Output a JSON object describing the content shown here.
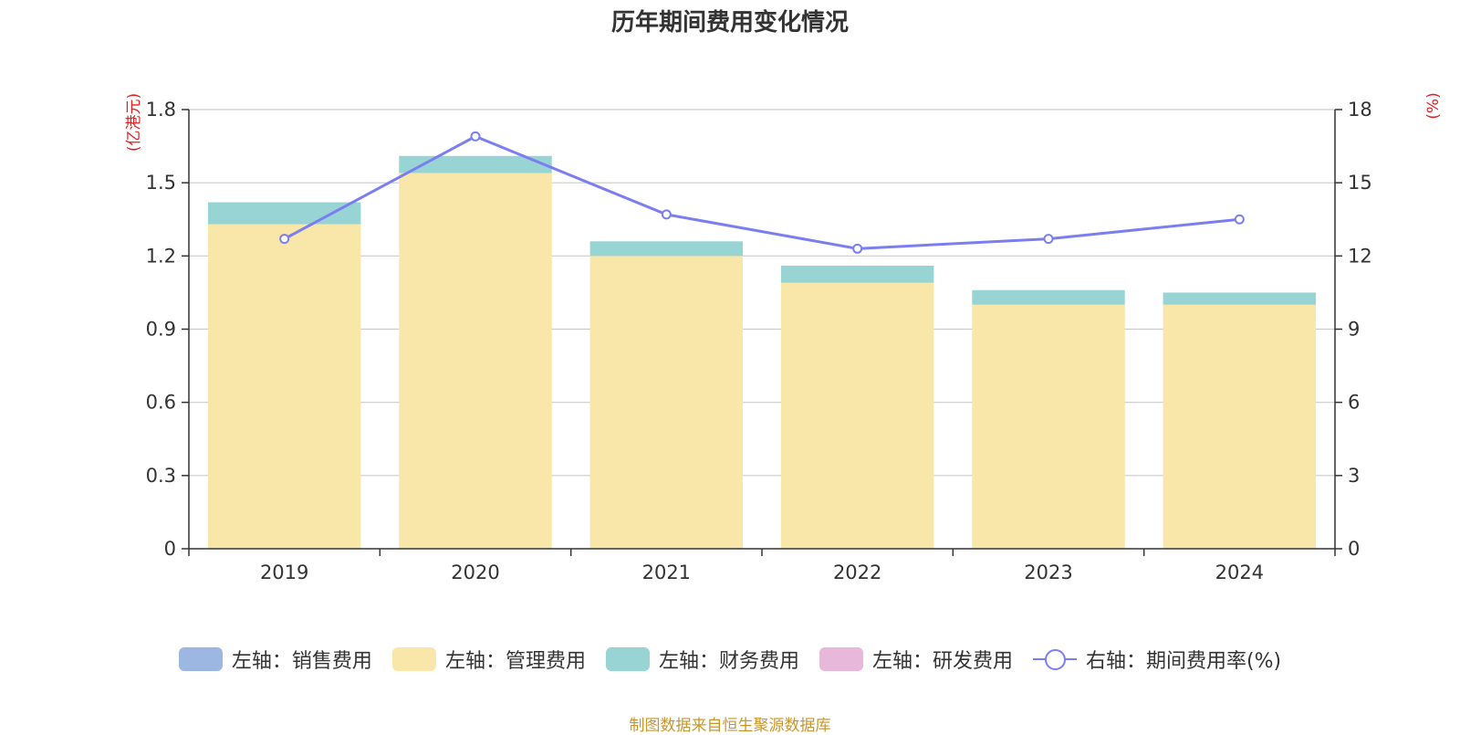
{
  "chart_data": {
    "type": "bar",
    "title": "历年期间费用变化情况",
    "categories": [
      "2019",
      "2020",
      "2021",
      "2022",
      "2023",
      "2024"
    ],
    "stacked": true,
    "left_axis": {
      "unit_label": "(亿港元)",
      "ylim": [
        0,
        1.8
      ],
      "ticks": [
        "0",
        "0.3",
        "0.6",
        "0.9",
        "1.2",
        "1.5",
        "1.8"
      ]
    },
    "right_axis": {
      "unit_label": "(%)",
      "ylim": [
        0,
        18
      ],
      "ticks": [
        "0",
        "3",
        "6",
        "9",
        "12",
        "15",
        "18"
      ]
    },
    "grid": true,
    "legend_position": "bottom",
    "series": [
      {
        "name": "左轴：销售费用",
        "axis": "left",
        "type": "bar",
        "color": "#9db7e3",
        "values": [
          0,
          0,
          0,
          0,
          0,
          0
        ]
      },
      {
        "name": "左轴：管理费用",
        "axis": "left",
        "type": "bar",
        "color": "#f8e7a8",
        "values": [
          1.33,
          1.54,
          1.2,
          1.09,
          1.0,
          1.0
        ]
      },
      {
        "name": "左轴：财务费用",
        "axis": "left",
        "type": "bar",
        "color": "#98d4d4",
        "values": [
          0.09,
          0.07,
          0.06,
          0.07,
          0.06,
          0.05
        ]
      },
      {
        "name": "左轴：研发费用",
        "axis": "left",
        "type": "bar",
        "color": "#e8b8da",
        "values": [
          0,
          0,
          0,
          0,
          0,
          0
        ]
      },
      {
        "name": "右轴：期间费用率(%)",
        "axis": "right",
        "type": "line",
        "color": "#7b7ef0",
        "values": [
          12.7,
          16.9,
          13.7,
          12.3,
          12.7,
          13.5
        ]
      }
    ]
  },
  "source_note": "制图数据来自恒生聚源数据库"
}
